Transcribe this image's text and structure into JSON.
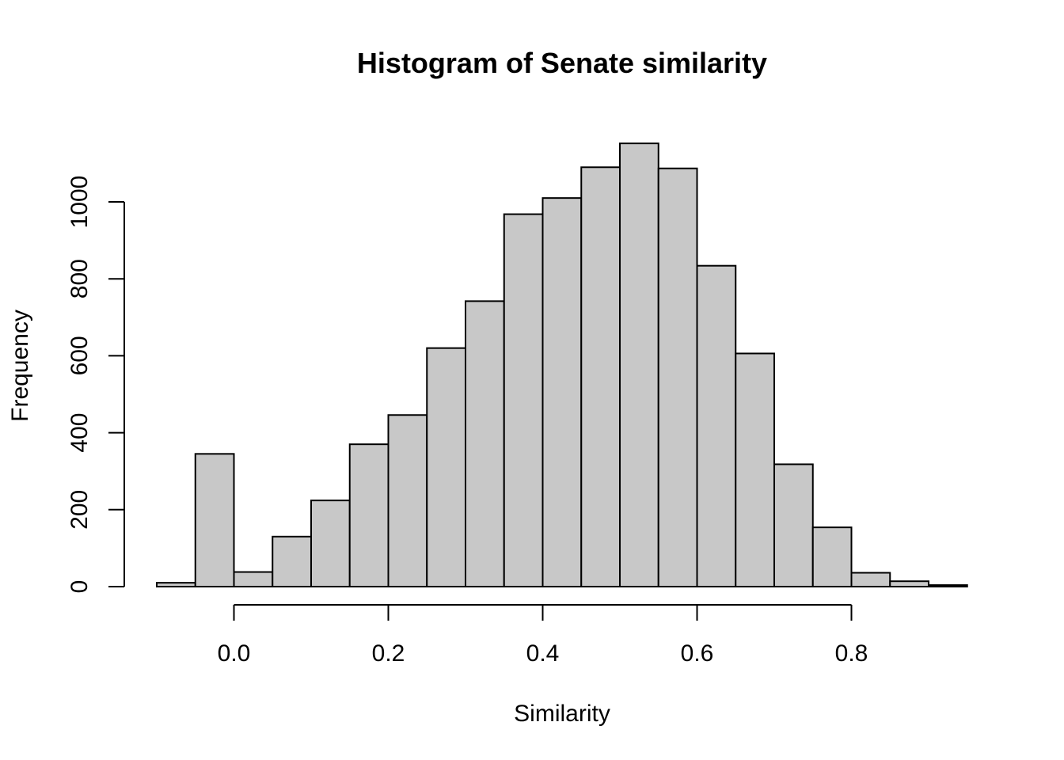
{
  "chart_data": {
    "type": "bar",
    "title": "Histogram of Senate similarity",
    "xlabel": "Similarity",
    "ylabel": "Frequency",
    "bins": [
      {
        "start": -0.1,
        "end": -0.05,
        "count": 10
      },
      {
        "start": -0.05,
        "end": 0.0,
        "count": 345
      },
      {
        "start": 0.0,
        "end": 0.05,
        "count": 38
      },
      {
        "start": 0.05,
        "end": 0.1,
        "count": 130
      },
      {
        "start": 0.1,
        "end": 0.15,
        "count": 224
      },
      {
        "start": 0.15,
        "end": 0.2,
        "count": 370
      },
      {
        "start": 0.2,
        "end": 0.25,
        "count": 446
      },
      {
        "start": 0.25,
        "end": 0.3,
        "count": 620
      },
      {
        "start": 0.3,
        "end": 0.35,
        "count": 742
      },
      {
        "start": 0.35,
        "end": 0.4,
        "count": 968
      },
      {
        "start": 0.4,
        "end": 0.45,
        "count": 1010
      },
      {
        "start": 0.45,
        "end": 0.5,
        "count": 1090
      },
      {
        "start": 0.5,
        "end": 0.55,
        "count": 1152
      },
      {
        "start": 0.55,
        "end": 0.6,
        "count": 1087
      },
      {
        "start": 0.6,
        "end": 0.65,
        "count": 834
      },
      {
        "start": 0.65,
        "end": 0.7,
        "count": 606
      },
      {
        "start": 0.7,
        "end": 0.75,
        "count": 318
      },
      {
        "start": 0.75,
        "end": 0.8,
        "count": 154
      },
      {
        "start": 0.8,
        "end": 0.85,
        "count": 36
      },
      {
        "start": 0.85,
        "end": 0.9,
        "count": 14
      },
      {
        "start": 0.9,
        "end": 0.95,
        "count": 4
      }
    ],
    "x_ticks": [
      {
        "value": 0.0,
        "label": "0.0"
      },
      {
        "value": 0.2,
        "label": "0.2"
      },
      {
        "value": 0.4,
        "label": "0.4"
      },
      {
        "value": 0.6,
        "label": "0.6"
      },
      {
        "value": 0.8,
        "label": "0.8"
      }
    ],
    "y_ticks": [
      {
        "value": 0,
        "label": "0"
      },
      {
        "value": 200,
        "label": "200"
      },
      {
        "value": 400,
        "label": "400"
      },
      {
        "value": 600,
        "label": "600"
      },
      {
        "value": 800,
        "label": "800"
      },
      {
        "value": 1000,
        "label": "1000"
      }
    ],
    "bar_color": "#c8c8c8",
    "border_color": "#000000",
    "grid": false
  }
}
